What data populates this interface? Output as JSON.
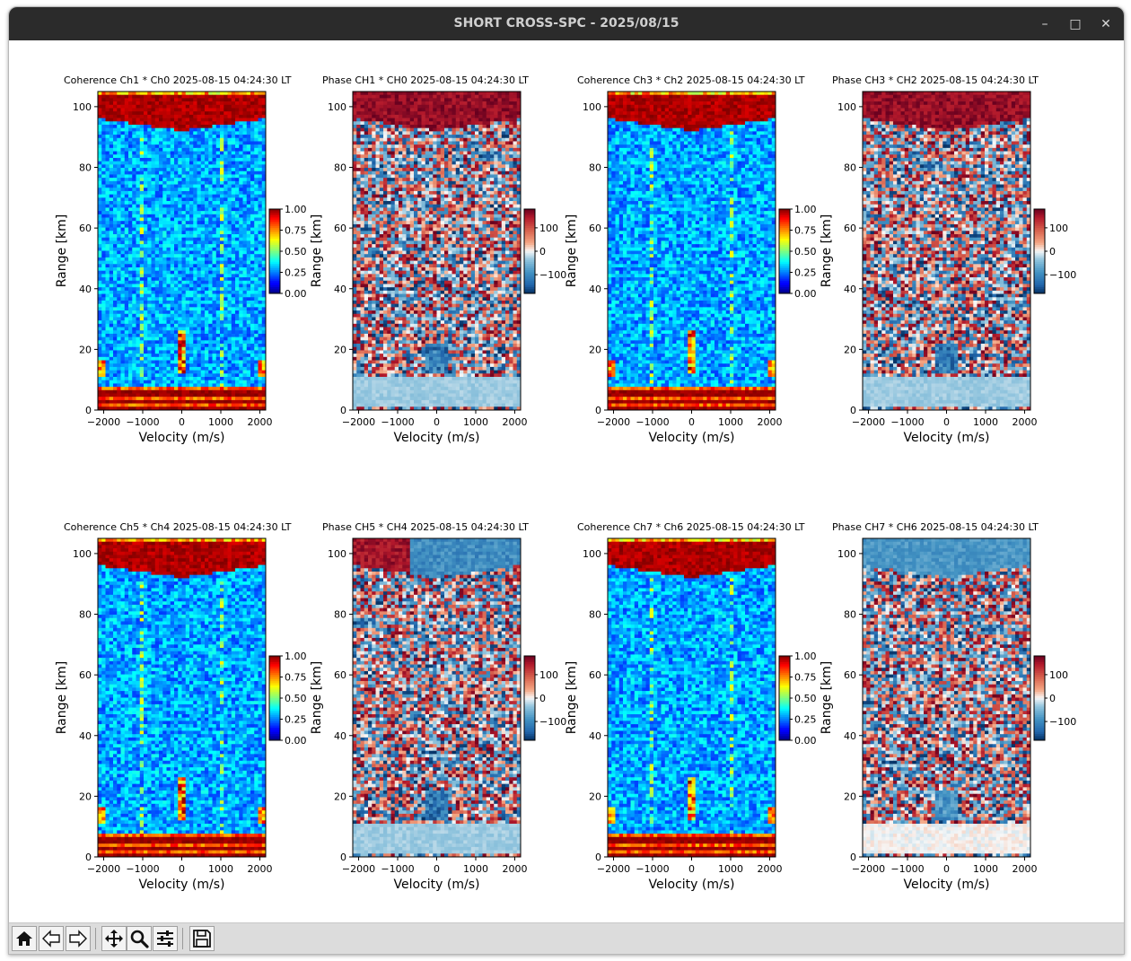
{
  "window": {
    "title": "SHORT CROSS-SPC - 2025/08/15",
    "controls": {
      "minimize": "–",
      "maximize": "□",
      "close": "✕"
    }
  },
  "plots": [
    {
      "title": "Coherence Ch1 * Ch0 2025-08-15 04:24:30 LT",
      "kind": "coherence",
      "xlabel": "Velocity (m/s)",
      "ylabel": "Range [km]",
      "xticks": [
        "−2000",
        "−1000",
        "0",
        "1000",
        "2000"
      ],
      "yticks": [
        "0",
        "20",
        "40",
        "60",
        "80",
        "100"
      ],
      "cbar_ticks": [
        "1.00",
        "0.75",
        "0.50",
        "0.25",
        "0.00"
      ],
      "ylim": [
        0,
        105
      ],
      "xlim": [
        -2150,
        2150
      ],
      "clim": [
        0,
        1
      ]
    },
    {
      "title": "Phase CH1 * CH0 2025-08-15 04:24:30 LT",
      "kind": "phase",
      "variant": "red_top",
      "xlabel": "Velocity (m/s)",
      "ylabel": "Range [km]",
      "xticks": [
        "−2000",
        "−1000",
        "0",
        "1000",
        "2000"
      ],
      "yticks": [
        "0",
        "20",
        "40",
        "60",
        "80",
        "100"
      ],
      "cbar_ticks": [
        "100",
        "0",
        "−100"
      ],
      "ylim": [
        0,
        105
      ],
      "xlim": [
        -2150,
        2150
      ],
      "clim": [
        -180,
        180
      ]
    },
    {
      "title": "Coherence Ch3 * Ch2 2025-08-15 04:24:30 LT",
      "kind": "coherence",
      "xlabel": "Velocity (m/s)",
      "ylabel": "Range [km]",
      "xticks": [
        "−2000",
        "−1000",
        "0",
        "1000",
        "2000"
      ],
      "yticks": [
        "0",
        "20",
        "40",
        "60",
        "80",
        "100"
      ],
      "cbar_ticks": [
        "1.00",
        "0.75",
        "0.50",
        "0.25",
        "0.00"
      ],
      "ylim": [
        0,
        105
      ],
      "xlim": [
        -2150,
        2150
      ],
      "clim": [
        0,
        1
      ]
    },
    {
      "title": "Phase CH3 * CH2 2025-08-15 04:24:30 LT",
      "kind": "phase",
      "variant": "red_top",
      "xlabel": "Velocity (m/s)",
      "ylabel": "Range [km]",
      "xticks": [
        "−2000",
        "−1000",
        "0",
        "1000",
        "2000"
      ],
      "yticks": [
        "0",
        "20",
        "40",
        "60",
        "80",
        "100"
      ],
      "cbar_ticks": [
        "100",
        "0",
        "−100"
      ],
      "ylim": [
        0,
        105
      ],
      "xlim": [
        -2150,
        2150
      ],
      "clim": [
        -180,
        180
      ]
    },
    {
      "title": "Coherence Ch5 * Ch4 2025-08-15 04:24:30 LT",
      "kind": "coherence",
      "xlabel": "Velocity (m/s)",
      "ylabel": "Range [km]",
      "xticks": [
        "−2000",
        "−1000",
        "0",
        "1000",
        "2000"
      ],
      "yticks": [
        "0",
        "20",
        "40",
        "60",
        "80",
        "100"
      ],
      "cbar_ticks": [
        "1.00",
        "0.75",
        "0.50",
        "0.25",
        "0.00"
      ],
      "ylim": [
        0,
        105
      ],
      "xlim": [
        -2150,
        2150
      ],
      "clim": [
        0,
        1
      ]
    },
    {
      "title": "Phase CH5 * CH4 2025-08-15 04:24:30 LT",
      "kind": "phase",
      "variant": "mixed_top",
      "xlabel": "Velocity (m/s)",
      "ylabel": "Range [km]",
      "xticks": [
        "−2000",
        "−1000",
        "0",
        "1000",
        "2000"
      ],
      "yticks": [
        "0",
        "20",
        "40",
        "60",
        "80",
        "100"
      ],
      "cbar_ticks": [
        "100",
        "0",
        "−100"
      ],
      "ylim": [
        0,
        105
      ],
      "xlim": [
        -2150,
        2150
      ],
      "clim": [
        -180,
        180
      ]
    },
    {
      "title": "Coherence Ch7 * Ch6 2025-08-15 04:24:30 LT",
      "kind": "coherence",
      "xlabel": "Velocity (m/s)",
      "ylabel": "Range [km]",
      "xticks": [
        "−2000",
        "−1000",
        "0",
        "1000",
        "2000"
      ],
      "yticks": [
        "0",
        "20",
        "40",
        "60",
        "80",
        "100"
      ],
      "cbar_ticks": [
        "1.00",
        "0.75",
        "0.50",
        "0.25",
        "0.00"
      ],
      "ylim": [
        0,
        105
      ],
      "xlim": [
        -2150,
        2150
      ],
      "clim": [
        0,
        1
      ]
    },
    {
      "title": "Phase CH7 * CH6 2025-08-15 04:24:30 LT",
      "kind": "phase",
      "variant": "blue_top",
      "xlabel": "Velocity (m/s)",
      "ylabel": "Range [km]",
      "xticks": [
        "−2000",
        "−1000",
        "0",
        "1000",
        "2000"
      ],
      "yticks": [
        "0",
        "20",
        "40",
        "60",
        "80",
        "100"
      ],
      "cbar_ticks": [
        "100",
        "0",
        "−100"
      ],
      "ylim": [
        0,
        105
      ],
      "xlim": [
        -2150,
        2150
      ],
      "clim": [
        -180,
        180
      ]
    }
  ],
  "toolbar": {
    "buttons": [
      {
        "name": "home-button",
        "icon": "home-icon"
      },
      {
        "name": "back-button",
        "icon": "back-arrow-icon"
      },
      {
        "name": "forward-button",
        "icon": "forward-arrow-icon"
      },
      {
        "name": "pan-button",
        "icon": "move-icon"
      },
      {
        "name": "zoom-button",
        "icon": "magnifier-icon"
      },
      {
        "name": "configure-subplots-button",
        "icon": "sliders-icon"
      },
      {
        "name": "save-button",
        "icon": "floppy-disk-icon"
      }
    ]
  },
  "colors": {
    "titlebar": "#2b2b2b",
    "toolbar": "#dcdcdc",
    "jet_low": "#00007f",
    "jet_high": "#7f0000",
    "phase_low": "#053061",
    "phase_mid": "#f7f7f7",
    "phase_high": "#67001f"
  }
}
